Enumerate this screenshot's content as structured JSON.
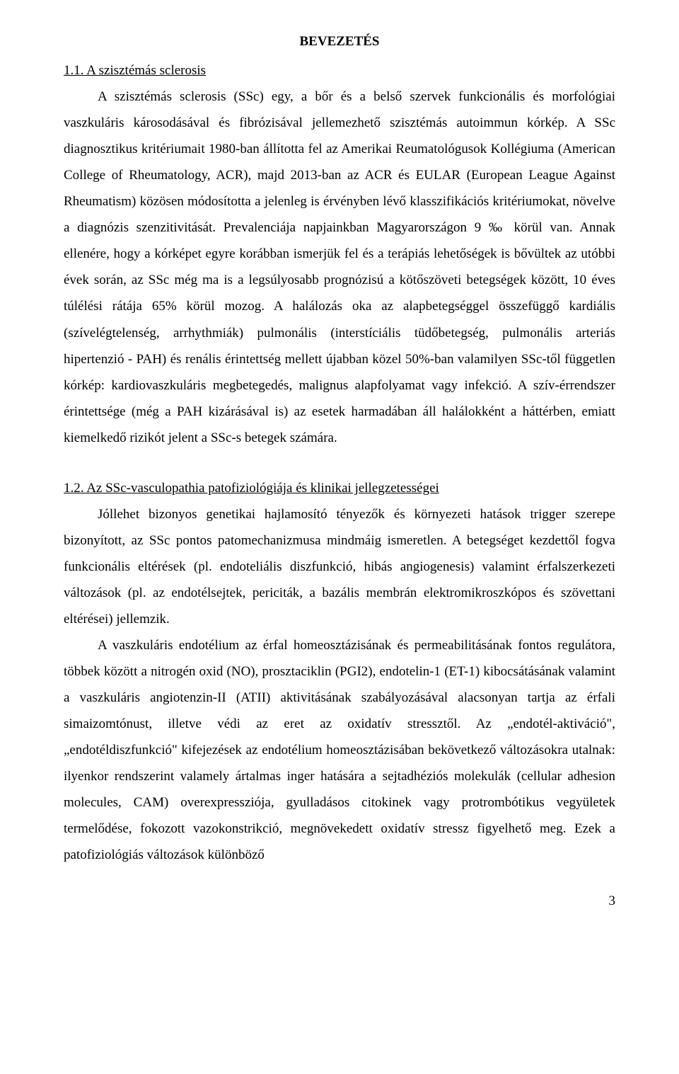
{
  "title": "BEVEZETÉS",
  "section1": {
    "heading": "1.1. A szisztémás sclerosis",
    "para1": "A szisztémás sclerosis (SSc) egy, a bőr és a belső szervek funkcionális és morfológiai vaszkuláris károsodásával és fibrózisával jellemezhető szisztémás autoimmun kórkép. A SSc diagnosztikus kritériumait 1980-ban állította fel az Amerikai Reumatológusok Kollégiuma (American College of Rheumatology, ACR), majd 2013-ban az ACR és EULAR (European League Against Rheumatism) közösen módosította a jelenleg is érvényben lévő klasszifikációs kritériumokat, növelve a diagnózis szenzitivitását. Prevalenciája napjainkban Magyarországon 9 ‰ körül van. Annak ellenére, hogy a kórképet egyre korábban ismerjük fel és a terápiás lehetőségek is bővültek az utóbbi évek során, az SSc még ma is a legsúlyosabb prognózisú a kötőszöveti betegségek között, 10 éves túlélési rátája 65% körül mozog. A halálozás oka az alapbetegséggel összefüggő kardiális (szívelégtelenség, arrhythmiák) pulmonális (interstíciális tüdőbetegség, pulmonális arteriás hipertenzió - PAH) és renális érintettség mellett újabban közel 50%-ban valamilyen SSc-től független kórkép: kardiovaszkuláris megbetegedés, malignus alapfolyamat vagy infekció. A szív-érrendszer érintettsége (még a PAH kizárásával is) az esetek harmadában áll halálokként a háttérben, emiatt kiemelkedő rizikót jelent a SSc-s betegek számára."
  },
  "section2": {
    "heading": "1.2. Az SSc-vasculopathia patofiziológiája és klinikai jellegzetességei",
    "para1": "Jóllehet bizonyos genetikai hajlamosító tényezők és környezeti hatások trigger szerepe bizonyított, az SSc pontos patomechanizmusa mindmáig ismeretlen. A betegséget kezdettől fogva funkcionális eltérések (pl. endoteliális diszfunkció, hibás angiogenesis) valamint érfalszerkezeti változások (pl. az endotélsejtek, periciták, a bazális membrán elektromikroszkópos és szövettani eltérései) jellemzik.",
    "para2": "A vaszkuláris endotélium az érfal homeosztázisának és permeabilitásának fontos regulátora, többek között a nitrogén oxid (NO), prosztaciklin (PGI2), endotelin-1 (ET-1) kibocsátásának valamint a vaszkuláris angiotenzin-II (ATII) aktivitásának szabályozásával alacsonyan tartja az érfali simaizomtónust, illetve védi az eret az oxidatív stressztől. Az „endotél-aktiváció\", „endotéldiszfunkció\" kifejezések az endotélium homeosztázisában bekövetkező változásokra utalnak: ilyenkor rendszerint valamely ártalmas inger hatására a sejtadhéziós molekulák (cellular adhesion molecules, CAM) overexpressziója, gyulladásos citokinek vagy protrombótikus vegyületek termelődése, fokozott vazokonstrikció, megnövekedett oxidatív stressz figyelhető meg. Ezek a patofiziológiás változások különböző"
  },
  "pageNumber": "3"
}
